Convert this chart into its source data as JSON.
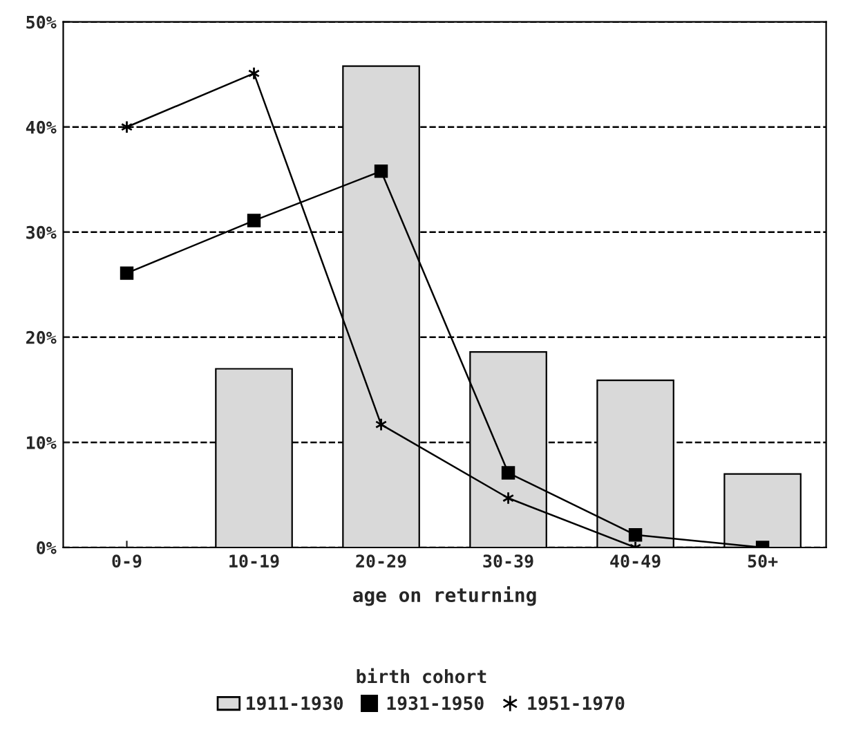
{
  "chart_data": {
    "type": "bar",
    "xlabel": "age on returning",
    "legend_title": "birth cohort",
    "categories": [
      "0-9",
      "10-19",
      "20-29",
      "30-39",
      "40-49",
      "50+"
    ],
    "series": [
      {
        "name": "1911-1930",
        "color": "#d9d9d9",
        "values": [
          0,
          17.0,
          45.8,
          18.6,
          15.9,
          7.0
        ]
      },
      {
        "name": "1931-1950",
        "type": "line",
        "color": "#000000",
        "marker": "square",
        "values": [
          26.1,
          31.1,
          35.8,
          7.1,
          1.2,
          0
        ]
      },
      {
        "name": "1951-1970",
        "type": "line",
        "color": "#000000",
        "marker": "cross",
        "values": [
          40.0,
          45.1,
          11.7,
          4.7,
          0,
          0
        ]
      }
    ],
    "ylim": [
      0,
      50
    ],
    "yticks": [
      {
        "value": 0,
        "label": "0%"
      },
      {
        "value": 10,
        "label": "10%"
      },
      {
        "value": 20,
        "label": "20%"
      },
      {
        "value": 30,
        "label": "30%"
      },
      {
        "value": 40,
        "label": "40%"
      },
      {
        "value": 50,
        "label": "50%"
      }
    ],
    "grid": "y",
    "legend": "bottom",
    "line_style": "solid"
  }
}
